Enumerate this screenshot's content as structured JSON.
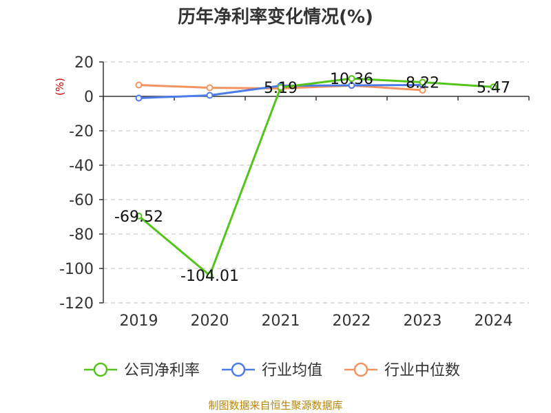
{
  "chart_data": {
    "type": "line",
    "title": "历年净利率变化情况(%)",
    "ylabel": "(%)",
    "categories": [
      "2019",
      "2020",
      "2021",
      "2022",
      "2023",
      "2024"
    ],
    "ylim": [
      -120,
      20
    ],
    "yticks": [
      20,
      0,
      -20,
      -40,
      -60,
      -80,
      -100,
      -120
    ],
    "grid": true,
    "legend_position": "bottom",
    "series": [
      {
        "name": "公司净利率",
        "color": "#52c41a",
        "values": [
          -69.52,
          -104.01,
          5.19,
          10.36,
          8.22,
          5.47
        ],
        "labels": [
          "-69.52",
          "-104.01",
          "5.19",
          "10.36",
          "8.22",
          "5.47"
        ]
      },
      {
        "name": "行业均值",
        "color": "#4a7be8",
        "values": [
          -1.0,
          0.6,
          6.2,
          6.4,
          6.6,
          null
        ]
      },
      {
        "name": "行业中位数",
        "color": "#f4935e",
        "values": [
          6.6,
          5.0,
          4.6,
          6.3,
          3.6,
          null
        ]
      }
    ]
  },
  "source": "制图数据来自恒生聚源数据库"
}
